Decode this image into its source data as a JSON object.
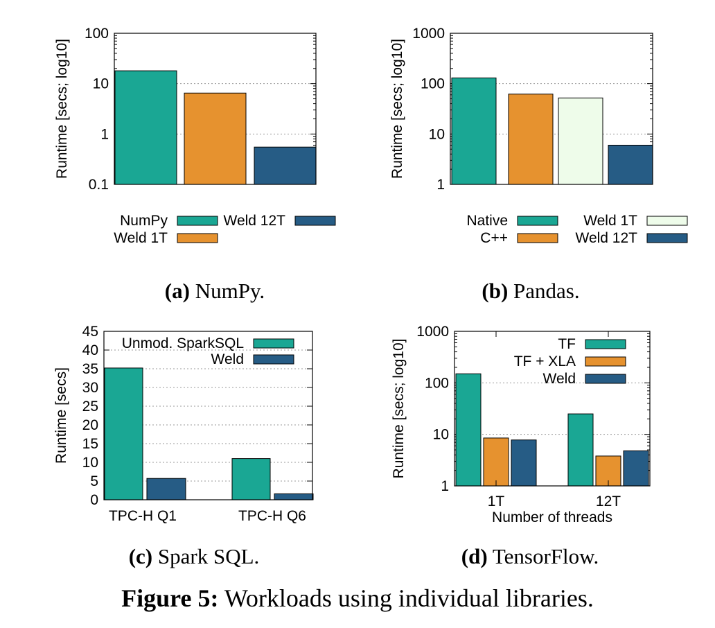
{
  "colors": {
    "teal": "#1aa794",
    "orange": "#e6922f",
    "navy": "#265c85",
    "paleGreen": "#eefcea",
    "grid": "#9a9a9a"
  },
  "chart_data": [
    {
      "id": "numpy",
      "type": "bar",
      "scale": "log",
      "ylabel": "Runtime [secs; log10]",
      "ylim": [
        0.1,
        100
      ],
      "yticks": [
        "0.1",
        "1",
        "10",
        "100"
      ],
      "series": [
        {
          "name": "NumPy",
          "value": 18,
          "color": "teal"
        },
        {
          "name": "Weld 1T",
          "value": 6.5,
          "color": "orange"
        },
        {
          "name": "Weld 12T",
          "value": 0.55,
          "color": "navy"
        }
      ],
      "legend": [
        "NumPy",
        "Weld 1T",
        "Weld 12T"
      ],
      "caption_label": "(a)",
      "caption_text": "NumPy."
    },
    {
      "id": "pandas",
      "type": "bar",
      "scale": "log",
      "ylabel": "Runtime [secs; log10]",
      "ylim": [
        1,
        1000
      ],
      "yticks": [
        "1",
        "10",
        "100",
        "1000"
      ],
      "series": [
        {
          "name": "Native",
          "value": 130,
          "color": "teal"
        },
        {
          "name": "C++",
          "value": 62,
          "color": "orange"
        },
        {
          "name": "Weld 1T",
          "value": 52,
          "color": "paleGreen"
        },
        {
          "name": "Weld 12T",
          "value": 6,
          "color": "navy"
        }
      ],
      "legend": [
        "Native",
        "C++",
        "Weld 1T",
        "Weld 12T"
      ],
      "caption_label": "(b)",
      "caption_text": "Pandas."
    },
    {
      "id": "sparksql",
      "type": "bar",
      "scale": "linear",
      "ylabel": "Runtime [secs]",
      "ylim": [
        0,
        45
      ],
      "yticks": [
        "0",
        "5",
        "10",
        "15",
        "20",
        "25",
        "30",
        "35",
        "40",
        "45"
      ],
      "categories": [
        "TPC-H Q1",
        "TPC-H Q6"
      ],
      "series": [
        {
          "name": "Unmod. SparkSQL",
          "values": [
            35.2,
            11
          ],
          "color": "teal"
        },
        {
          "name": "Weld",
          "values": [
            5.7,
            1.6
          ],
          "color": "navy"
        }
      ],
      "caption_label": "(c)",
      "caption_text": "Spark SQL."
    },
    {
      "id": "tensorflow",
      "type": "bar",
      "scale": "log",
      "ylabel": "Runtime [secs; log10]",
      "xlabel": "Number of threads",
      "ylim": [
        1,
        1000
      ],
      "yticks": [
        "1",
        "10",
        "100",
        "1000"
      ],
      "categories": [
        "1T",
        "12T"
      ],
      "series": [
        {
          "name": "TF",
          "values": [
            150,
            25
          ],
          "color": "teal"
        },
        {
          "name": "TF + XLA",
          "values": [
            8.5,
            3.8
          ],
          "color": "orange"
        },
        {
          "name": "Weld",
          "values": [
            7.8,
            4.8
          ],
          "color": "navy"
        }
      ],
      "caption_label": "(d)",
      "caption_text": "TensorFlow."
    }
  ],
  "figure_caption_label": "Figure 5:",
  "figure_caption_text": "Workloads using individual libraries."
}
